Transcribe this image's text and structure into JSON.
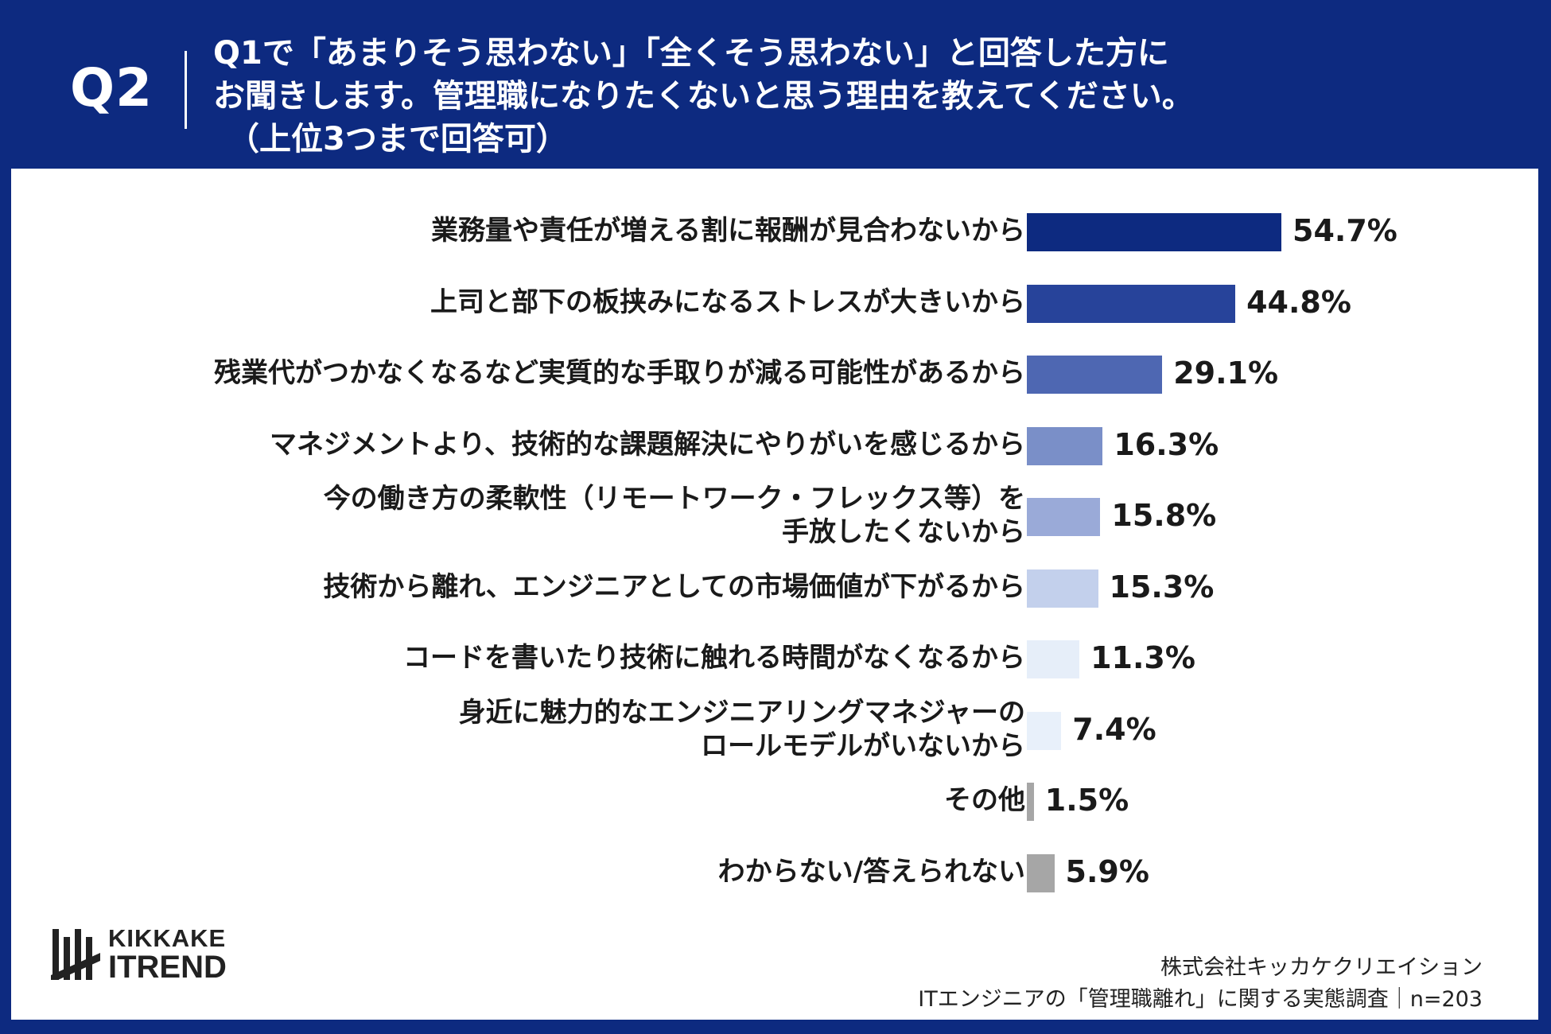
{
  "header": {
    "question_number": "Q2",
    "question_lines": [
      "Q1で「あまりそう思わない」「全くそう思わない」と回答した方に",
      "お聞きします。管理職になりたくないと思う理由を教えてください。",
      "（上位3つまで回答可）"
    ],
    "background_color": "#0d2a80"
  },
  "chart_data": {
    "type": "bar",
    "orientation": "horizontal",
    "categories": [
      [
        "業務量や責任が増える割に報酬が見合わないから"
      ],
      [
        "上司と部下の板挟みになるストレスが大きいから"
      ],
      [
        "残業代がつかなくなるなど実質的な手取りが減る可能性があるから"
      ],
      [
        "マネジメントより、技術的な課題解決にやりがいを感じるから"
      ],
      [
        "今の働き方の柔軟性（リモートワーク・フレックス等）を",
        "手放したくないから"
      ],
      [
        "技術から離れ、エンジニアとしての市場価値が下がるから"
      ],
      [
        "コードを書いたり技術に触れる時間がなくなるから"
      ],
      [
        "身近に魅力的なエンジニアリングマネジャーの",
        "ロールモデルがいないから"
      ],
      [
        "その他"
      ],
      [
        "わからない/答えられない"
      ]
    ],
    "values": [
      54.7,
      44.8,
      29.1,
      16.3,
      15.8,
      15.3,
      11.3,
      7.4,
      1.5,
      5.9
    ],
    "value_labels": [
      "54.7%",
      "44.8%",
      "29.1%",
      "16.3%",
      "15.8%",
      "15.3%",
      "11.3%",
      "7.4%",
      "1.5%",
      "5.9%"
    ],
    "colors": [
      "#0d2a80",
      "#27439a",
      "#4e67b2",
      "#7a8fc8",
      "#9aaad8",
      "#c3d0ec",
      "#e6eef9",
      "#e8f0fa",
      "#a6a6a6",
      "#a6a6a6"
    ],
    "unit": "%"
  },
  "logo": {
    "line1": "KIKKAKE",
    "line2": "ITREND"
  },
  "footer": {
    "company": "株式会社キッカケクリエイション",
    "survey": "ITエンジニアの「管理職離れ」に関する実態調査｜n=203"
  }
}
